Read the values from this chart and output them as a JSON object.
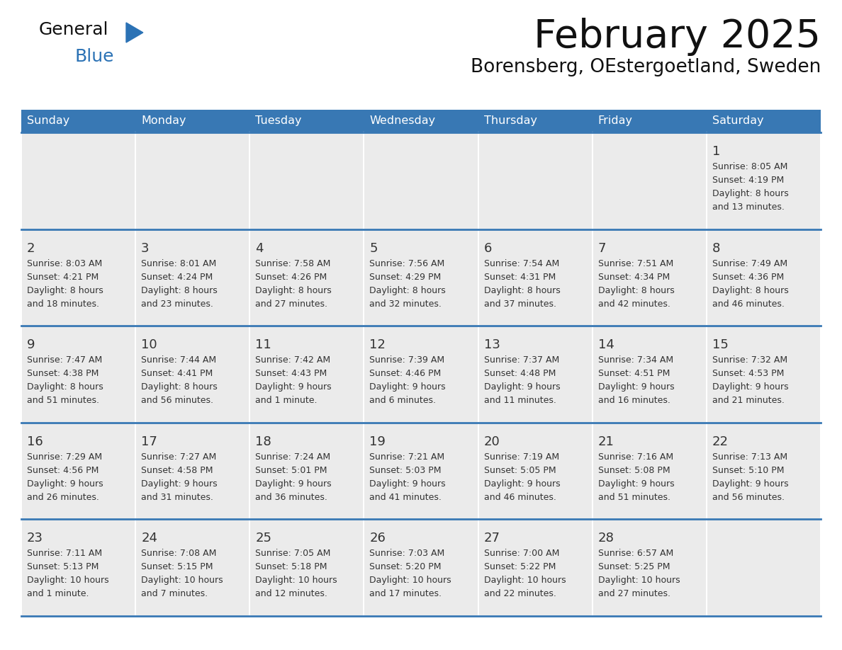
{
  "title": "February 2025",
  "subtitle": "Borensberg, OEstergoetland, Sweden",
  "header_bg": "#3878b4",
  "header_text_color": "#ffffff",
  "day_names": [
    "Sunday",
    "Monday",
    "Tuesday",
    "Wednesday",
    "Thursday",
    "Friday",
    "Saturday"
  ],
  "cell_bg": "#ebebeb",
  "row_line_color": "#3878b4",
  "number_color": "#333333",
  "text_color": "#333333",
  "logo_general_color": "#111111",
  "logo_blue_color": "#2b72b5",
  "logo_triangle_color": "#2b72b5",
  "calendar": [
    [
      {
        "day": null,
        "info": null
      },
      {
        "day": null,
        "info": null
      },
      {
        "day": null,
        "info": null
      },
      {
        "day": null,
        "info": null
      },
      {
        "day": null,
        "info": null
      },
      {
        "day": null,
        "info": null
      },
      {
        "day": 1,
        "info": "Sunrise: 8:05 AM\nSunset: 4:19 PM\nDaylight: 8 hours\nand 13 minutes."
      }
    ],
    [
      {
        "day": 2,
        "info": "Sunrise: 8:03 AM\nSunset: 4:21 PM\nDaylight: 8 hours\nand 18 minutes."
      },
      {
        "day": 3,
        "info": "Sunrise: 8:01 AM\nSunset: 4:24 PM\nDaylight: 8 hours\nand 23 minutes."
      },
      {
        "day": 4,
        "info": "Sunrise: 7:58 AM\nSunset: 4:26 PM\nDaylight: 8 hours\nand 27 minutes."
      },
      {
        "day": 5,
        "info": "Sunrise: 7:56 AM\nSunset: 4:29 PM\nDaylight: 8 hours\nand 32 minutes."
      },
      {
        "day": 6,
        "info": "Sunrise: 7:54 AM\nSunset: 4:31 PM\nDaylight: 8 hours\nand 37 minutes."
      },
      {
        "day": 7,
        "info": "Sunrise: 7:51 AM\nSunset: 4:34 PM\nDaylight: 8 hours\nand 42 minutes."
      },
      {
        "day": 8,
        "info": "Sunrise: 7:49 AM\nSunset: 4:36 PM\nDaylight: 8 hours\nand 46 minutes."
      }
    ],
    [
      {
        "day": 9,
        "info": "Sunrise: 7:47 AM\nSunset: 4:38 PM\nDaylight: 8 hours\nand 51 minutes."
      },
      {
        "day": 10,
        "info": "Sunrise: 7:44 AM\nSunset: 4:41 PM\nDaylight: 8 hours\nand 56 minutes."
      },
      {
        "day": 11,
        "info": "Sunrise: 7:42 AM\nSunset: 4:43 PM\nDaylight: 9 hours\nand 1 minute."
      },
      {
        "day": 12,
        "info": "Sunrise: 7:39 AM\nSunset: 4:46 PM\nDaylight: 9 hours\nand 6 minutes."
      },
      {
        "day": 13,
        "info": "Sunrise: 7:37 AM\nSunset: 4:48 PM\nDaylight: 9 hours\nand 11 minutes."
      },
      {
        "day": 14,
        "info": "Sunrise: 7:34 AM\nSunset: 4:51 PM\nDaylight: 9 hours\nand 16 minutes."
      },
      {
        "day": 15,
        "info": "Sunrise: 7:32 AM\nSunset: 4:53 PM\nDaylight: 9 hours\nand 21 minutes."
      }
    ],
    [
      {
        "day": 16,
        "info": "Sunrise: 7:29 AM\nSunset: 4:56 PM\nDaylight: 9 hours\nand 26 minutes."
      },
      {
        "day": 17,
        "info": "Sunrise: 7:27 AM\nSunset: 4:58 PM\nDaylight: 9 hours\nand 31 minutes."
      },
      {
        "day": 18,
        "info": "Sunrise: 7:24 AM\nSunset: 5:01 PM\nDaylight: 9 hours\nand 36 minutes."
      },
      {
        "day": 19,
        "info": "Sunrise: 7:21 AM\nSunset: 5:03 PM\nDaylight: 9 hours\nand 41 minutes."
      },
      {
        "day": 20,
        "info": "Sunrise: 7:19 AM\nSunset: 5:05 PM\nDaylight: 9 hours\nand 46 minutes."
      },
      {
        "day": 21,
        "info": "Sunrise: 7:16 AM\nSunset: 5:08 PM\nDaylight: 9 hours\nand 51 minutes."
      },
      {
        "day": 22,
        "info": "Sunrise: 7:13 AM\nSunset: 5:10 PM\nDaylight: 9 hours\nand 56 minutes."
      }
    ],
    [
      {
        "day": 23,
        "info": "Sunrise: 7:11 AM\nSunset: 5:13 PM\nDaylight: 10 hours\nand 1 minute."
      },
      {
        "day": 24,
        "info": "Sunrise: 7:08 AM\nSunset: 5:15 PM\nDaylight: 10 hours\nand 7 minutes."
      },
      {
        "day": 25,
        "info": "Sunrise: 7:05 AM\nSunset: 5:18 PM\nDaylight: 10 hours\nand 12 minutes."
      },
      {
        "day": 26,
        "info": "Sunrise: 7:03 AM\nSunset: 5:20 PM\nDaylight: 10 hours\nand 17 minutes."
      },
      {
        "day": 27,
        "info": "Sunrise: 7:00 AM\nSunset: 5:22 PM\nDaylight: 10 hours\nand 22 minutes."
      },
      {
        "day": 28,
        "info": "Sunrise: 6:57 AM\nSunset: 5:25 PM\nDaylight: 10 hours\nand 27 minutes."
      },
      {
        "day": null,
        "info": null
      }
    ]
  ]
}
